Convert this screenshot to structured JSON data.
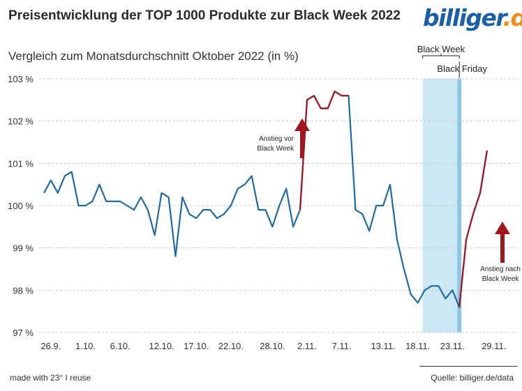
{
  "header": {
    "title": "Preisentwicklung der TOP 1000 Produkte zur Black Week 2022",
    "subtitle": "Vergleich zum Monatsdurchschnitt Oktober 2022 (in %)",
    "logo_main": "billiger",
    "logo_dot": ".",
    "logo_tld": "de"
  },
  "footer": {
    "made_with": "made with 23° I reuse",
    "source": "Quelle: billiger.de/data"
  },
  "colors": {
    "line": "#1f6aa5",
    "rise": "#a3151c",
    "band": "#cde8f5",
    "friday": "#8ec5e2",
    "grid": "#c8c8c8"
  },
  "chart_data": {
    "type": "line",
    "title": "Preisentwicklung der TOP 1000 Produkte zur Black Week 2022",
    "ylabel": "Vergleich zum Monatsdurchschnitt Oktober 2022 (in %)",
    "ylim": [
      97,
      103
    ],
    "yticks": [
      "97 %",
      "98 %",
      "99 %",
      "100 %",
      "101 %",
      "102 %",
      "103 %"
    ],
    "xticks": [
      "26.9.",
      "1.10.",
      "6.10.",
      "12.10.",
      "17.10.",
      "22.10.",
      "28.10.",
      "2.11.",
      "7.11.",
      "13.11.",
      "18.11.",
      "23.11.",
      "29.11."
    ],
    "xtick_index": [
      1,
      6,
      11,
      17,
      22,
      27,
      33,
      38,
      43,
      49,
      54,
      59,
      65
    ],
    "grid": true,
    "series": [
      {
        "values": [
          100.3,
          100.6,
          100.3,
          100.7,
          100.8,
          100.0,
          100.0,
          100.1,
          100.5,
          100.1,
          100.1,
          100.1,
          100.0,
          99.9,
          100.2,
          99.9,
          99.3,
          100.3,
          100.2,
          98.8,
          100.2,
          99.8,
          99.7,
          99.9,
          99.9,
          99.7,
          99.8,
          100.0,
          100.4,
          100.5,
          100.7,
          99.9,
          99.9,
          99.5,
          100.0,
          100.4,
          99.5,
          99.9,
          102.5,
          102.6,
          102.3,
          102.3,
          102.7,
          102.6,
          102.6,
          99.9,
          99.8,
          99.4,
          100.0,
          100.0,
          100.5,
          99.2,
          98.5,
          97.9,
          97.7,
          98.0,
          98.1,
          98.1,
          97.8,
          98.0,
          97.6,
          99.2,
          99.8,
          100.3,
          101.3
        ]
      }
    ],
    "highlight_segments": [
      [
        37,
        44
      ],
      [
        60,
        64
      ]
    ],
    "black_week_range": [
      54,
      60
    ],
    "black_friday_index": 60,
    "annotations": {
      "black_week": "Black Week",
      "black_friday": "Black Friday",
      "rise_before_1": "Anstieg vor",
      "rise_before_2": "Black Week",
      "rise_after_1": "Anstieg nach",
      "rise_after_2": "Black Week"
    }
  }
}
